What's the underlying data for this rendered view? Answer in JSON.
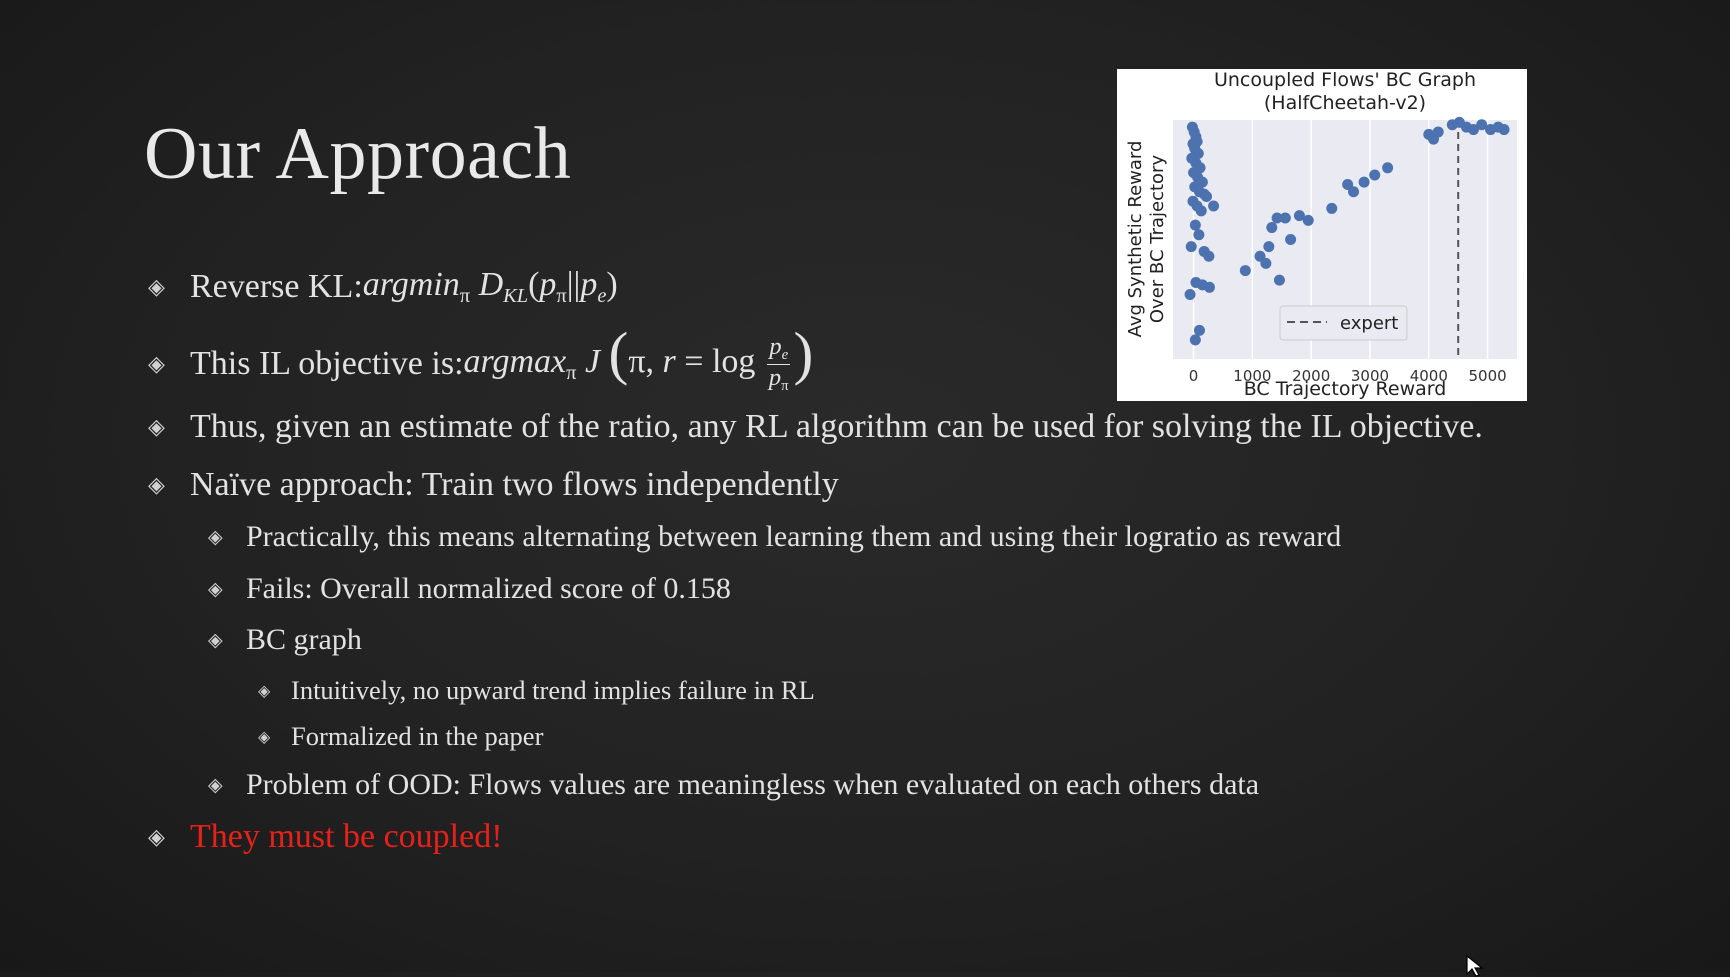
{
  "slide": {
    "title": "Our Approach",
    "bullets": {
      "b1_text": "Reverse KL: ",
      "b1_math": {
        "argmin": "argmin",
        "pi": "π",
        "D": "D",
        "KL": "KL",
        "open": "(",
        "p": "p",
        "bars": "||",
        "e": "e",
        "close": ")"
      },
      "b2_text": "This IL objective is: ",
      "b2_math": {
        "argmax": "argmax",
        "pi": "π",
        "J": "J",
        "lparen": "(",
        "pi_r": "π, ",
        "r": "r",
        "eq": " = log",
        "num_p": "p",
        "num_sub": "e",
        "den_p": "p",
        "den_sub": "π",
        "rparen": ")"
      },
      "b3": "Thus, given an estimate of the ratio, any RL algorithm can be used for solving the IL objective.",
      "b4": "Naïve approach: Train two flows independently",
      "b4_1": "Practically, this means alternating between learning them and using their logratio as reward",
      "b4_2": "Fails: Overall normalized score of 0.158",
      "b4_3": "BC graph",
      "b4_3_1": "Intuitively, no upward trend implies failure in RL",
      "b4_3_2": "Formalized in the paper",
      "b4_4": "Problem of OOD: Flows values are meaningless when evaluated on each others data",
      "b5": "They must be coupled!"
    },
    "bullet_glyph": "◈",
    "accent_red": "#e8201a"
  },
  "chart_data": {
    "type": "scatter",
    "title": "Uncoupled Flows' BC Graph",
    "subtitle": "(HalfCheetah-v2)",
    "xlabel": "BC Trajectory Reward",
    "ylabel": "Avg Synthetic Reward\nOver BC Trajectory",
    "xlim": [
      -350,
      5500
    ],
    "ylim": [
      0,
      1
    ],
    "x_ticks": [
      0,
      1000,
      2000,
      3000,
      4000,
      5000
    ],
    "x_tick_labels": [
      "0",
      "1000",
      "2000",
      "3000",
      "4000",
      "5000"
    ],
    "y_tick_labels": [],
    "grid": true,
    "legend": {
      "placement": "lower-center",
      "entries": [
        {
          "label": "expert",
          "style": "dashed",
          "color": "#555555"
        }
      ]
    },
    "expert_x": 4500,
    "marker_color": "#4c72b0",
    "plot_bg": "#eaeaf2",
    "points": [
      [
        -20,
        0.97
      ],
      [
        10,
        0.95
      ],
      [
        40,
        0.93
      ],
      [
        -10,
        0.9
      ],
      [
        60,
        0.91
      ],
      [
        20,
        0.88
      ],
      [
        80,
        0.86
      ],
      [
        -30,
        0.84
      ],
      [
        40,
        0.82
      ],
      [
        110,
        0.8
      ],
      [
        0,
        0.78
      ],
      [
        70,
        0.76
      ],
      [
        150,
        0.74
      ],
      [
        20,
        0.72
      ],
      [
        100,
        0.7
      ],
      [
        180,
        0.69
      ],
      [
        -10,
        0.66
      ],
      [
        60,
        0.64
      ],
      [
        130,
        0.62
      ],
      [
        220,
        0.68
      ],
      [
        340,
        0.64
      ],
      [
        30,
        0.56
      ],
      [
        90,
        0.52
      ],
      [
        -40,
        0.47
      ],
      [
        180,
        0.45
      ],
      [
        260,
        0.43
      ],
      [
        40,
        0.32
      ],
      [
        150,
        0.31
      ],
      [
        270,
        0.3
      ],
      [
        -60,
        0.27
      ],
      [
        100,
        0.12
      ],
      [
        30,
        0.08
      ],
      [
        880,
        0.37
      ],
      [
        1130,
        0.43
      ],
      [
        1230,
        0.4
      ],
      [
        1280,
        0.47
      ],
      [
        1330,
        0.55
      ],
      [
        1420,
        0.59
      ],
      [
        1560,
        0.59
      ],
      [
        1650,
        0.5
      ],
      [
        1460,
        0.33
      ],
      [
        1800,
        0.6
      ],
      [
        1950,
        0.58
      ],
      [
        2350,
        0.63
      ],
      [
        2620,
        0.73
      ],
      [
        2720,
        0.7
      ],
      [
        2900,
        0.74
      ],
      [
        3080,
        0.77
      ],
      [
        3300,
        0.8
      ],
      [
        4000,
        0.94
      ],
      [
        4080,
        0.92
      ],
      [
        4160,
        0.95
      ],
      [
        4400,
        0.98
      ],
      [
        4520,
        0.99
      ],
      [
        4640,
        0.97
      ],
      [
        4760,
        0.96
      ],
      [
        4900,
        0.98
      ],
      [
        5050,
        0.96
      ],
      [
        5180,
        0.97
      ],
      [
        5280,
        0.96
      ]
    ]
  }
}
